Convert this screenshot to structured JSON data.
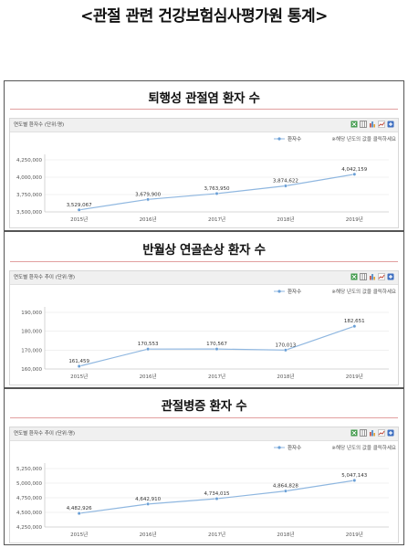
{
  "page": {
    "title": "<관절 관련 건강보험심사평가원 통계>"
  },
  "panels": [
    {
      "title": "퇴행성 관절염 환자 수",
      "chart_header": "연도별 환자수 (단위:명)",
      "legend": "환자수",
      "note": "※해당 년도의 값을 클릭하세요"
    },
    {
      "title": "반월상 연골손상 환자 수",
      "chart_header": "연도별 환자수 추이 (단위:명)",
      "legend": "환자수",
      "note": "※해당 년도의 값을 클릭하세요"
    },
    {
      "title": "관절병증 환자 수",
      "chart_header": "연도별 환자수 추이 (단위:명)",
      "legend": "환자수",
      "note": "※해당 년도의 값을 클릭하세요"
    }
  ],
  "toolbar_icons": [
    "excel-icon",
    "grid-icon",
    "bar-chart-icon",
    "line-chart-icon",
    "add-icon"
  ],
  "colors": {
    "line": "#8fb7e0",
    "marker": "#6a9fd6",
    "title_rule": "#e2a0a0"
  },
  "chart_data": [
    {
      "type": "line",
      "title": "퇴행성 관절염 환자 수",
      "categories": [
        "2015년",
        "2016년",
        "2017년",
        "2018년",
        "2019년"
      ],
      "series": [
        {
          "name": "환자수",
          "values": [
            3529067,
            3679900,
            3763950,
            3874622,
            4042159
          ]
        }
      ],
      "value_labels": [
        "3,529,067",
        "3,679,900",
        "3,763,950",
        "3,874,622",
        "4,042,159"
      ],
      "ylim": [
        3500000,
        4250000
      ],
      "yticks": [
        3500000,
        3750000,
        4000000,
        4250000
      ],
      "ytick_labels": [
        "3,500,000",
        "3,750,000",
        "4,000,000",
        "4,250,000"
      ],
      "legend": "top-right"
    },
    {
      "type": "line",
      "title": "반월상 연골손상 환자 수",
      "categories": [
        "2015년",
        "2016년",
        "2017년",
        "2018년",
        "2019년"
      ],
      "series": [
        {
          "name": "환자수",
          "values": [
            161459,
            170553,
            170567,
            170013,
            182651
          ]
        }
      ],
      "value_labels": [
        "161,459",
        "170,553",
        "170,567",
        "170,013",
        "182,651"
      ],
      "ylim": [
        160000,
        190000
      ],
      "yticks": [
        160000,
        170000,
        180000,
        190000
      ],
      "ytick_labels": [
        "160,000",
        "170,000",
        "180,000",
        "190,000"
      ],
      "legend": "top-right"
    },
    {
      "type": "line",
      "title": "관절병증 환자 수",
      "categories": [
        "2015년",
        "2016년",
        "2017년",
        "2018년",
        "2019년"
      ],
      "series": [
        {
          "name": "환자수",
          "values": [
            4482926,
            4642910,
            4734015,
            4864828,
            5047143
          ]
        }
      ],
      "value_labels": [
        "4,482,926",
        "4,642,910",
        "4,734,015",
        "4,864,828",
        "5,047,143"
      ],
      "ylim": [
        4250000,
        5250000
      ],
      "yticks": [
        4250000,
        4500000,
        4750000,
        5000000,
        5250000
      ],
      "ytick_labels": [
        "4,250,000",
        "4,500,000",
        "4,750,000",
        "5,000,000",
        "5,250,000"
      ],
      "legend": "top-right"
    }
  ]
}
